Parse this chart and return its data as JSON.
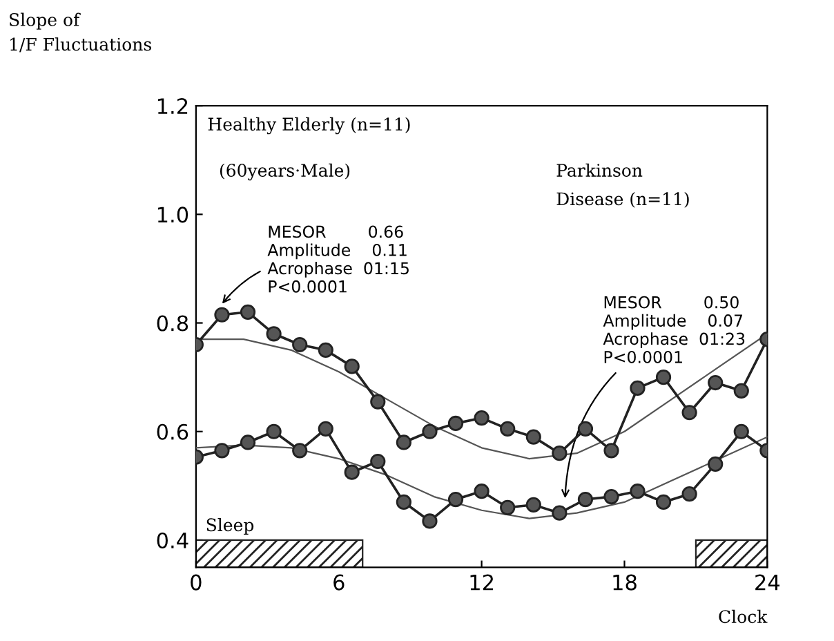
{
  "chart_data": {
    "type": "line",
    "ylabel": "Slope of\n1/F Fluctuations",
    "xlabel": "Clock",
    "xlim": [
      0,
      24
    ],
    "xticks": [
      0,
      6,
      12,
      18,
      24
    ],
    "ylim": [
      0.35,
      1.2
    ],
    "yticks": [
      0.4,
      0.6,
      0.8,
      {
        "value": 1.0,
        "label": "1.0"
      },
      1.2
    ],
    "grid": false,
    "series": [
      {
        "color": "#222222",
        "marker": "circle",
        "line_style": "solid",
        "x": [
          0,
          1.09,
          2.18,
          3.27,
          4.36,
          5.45,
          6.55,
          7.64,
          8.73,
          9.82,
          10.91,
          12,
          13.09,
          14.18,
          15.27,
          16.36,
          17.45,
          18.55,
          19.64,
          20.73,
          21.82,
          22.91,
          24
        ],
        "values": [
          0.76,
          0.815,
          0.82,
          0.78,
          0.76,
          0.75,
          0.72,
          0.655,
          0.58,
          0.6,
          0.615,
          0.625,
          0.605,
          0.59,
          0.56,
          0.605,
          0.565,
          0.68,
          0.7,
          0.635,
          0.69,
          0.675,
          0.77
        ]
      },
      {
        "color": "#222222",
        "marker": "circle",
        "line_style": "solid",
        "x": [
          0,
          1.09,
          2.18,
          3.27,
          4.36,
          5.45,
          6.55,
          7.64,
          8.73,
          9.82,
          10.91,
          12,
          13.09,
          14.18,
          15.27,
          16.36,
          17.45,
          18.55,
          19.64,
          20.73,
          21.82,
          22.91,
          24
        ],
        "values": [
          0.553,
          0.565,
          0.58,
          0.6,
          0.565,
          0.605,
          0.525,
          0.545,
          0.47,
          0.435,
          0.475,
          0.49,
          0.46,
          0.465,
          0.45,
          0.475,
          0.48,
          0.49,
          0.47,
          0.485,
          0.54,
          0.6,
          0.565
        ]
      },
      {
        "type": "line",
        "color": "#555555",
        "marker": "none",
        "line_style": "solid",
        "x": [
          0,
          2,
          4,
          6,
          8,
          10,
          12,
          14,
          16,
          18,
          20,
          22,
          24
        ],
        "values": [
          0.77,
          0.77,
          0.75,
          0.71,
          0.66,
          0.61,
          0.57,
          0.55,
          0.56,
          0.6,
          0.66,
          0.72,
          0.78
        ]
      },
      {
        "type": "line",
        "color": "#555555",
        "marker": "none",
        "line_style": "solid",
        "x": [
          0,
          2,
          4,
          6,
          8,
          10,
          12,
          14,
          16,
          18,
          20,
          22,
          24
        ],
        "values": [
          0.57,
          0.575,
          0.57,
          0.55,
          0.52,
          0.48,
          0.455,
          0.44,
          0.45,
          0.47,
          0.51,
          0.55,
          0.59
        ]
      }
    ],
    "bands": [
      {
        "axis": "x",
        "from": 0,
        "to": 7,
        "label": "Sleep",
        "color": "#222222"
      },
      {
        "axis": "x",
        "from": 21,
        "to": 24,
        "label": null,
        "color": "#222222"
      }
    ],
    "annotations": [
      "Healthy Elderly (n=11)",
      "(60years·Male)",
      "Parkinson\nDisease (n=11)",
      {
        "text": "MESOR        0.66\nAmplitude    0.11\nAcrophase  01:15\nP<0.0001",
        "x": 1,
        "y": 0.83
      },
      {
        "text": "MESOR        0.50\nAmplitude    0.07\nAcrophase  01:23\nP<0.0001",
        "x": 15.5,
        "y": 0.47
      }
    ]
  }
}
